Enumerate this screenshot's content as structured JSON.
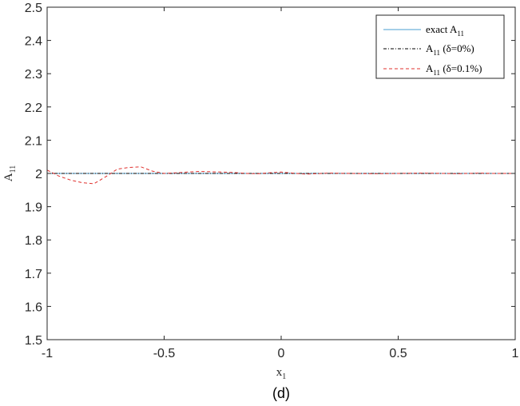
{
  "chart_data": {
    "type": "line",
    "title": "",
    "xlabel": "x",
    "xlabel_sub": "1",
    "ylabel": "A",
    "ylabel_sub": "11",
    "xlim": [
      -1,
      1
    ],
    "ylim": [
      1.5,
      2.5
    ],
    "xticks": [
      "-1",
      "-0.5",
      "0",
      "0.5",
      "1"
    ],
    "yticks": [
      "1.5",
      "1.6",
      "1.7",
      "1.8",
      "1.9",
      "2",
      "2.1",
      "2.2",
      "2.3",
      "2.4",
      "2.5"
    ],
    "grid": false,
    "legend_position": "top-right",
    "caption": "(d)",
    "series": [
      {
        "name": "exact A11",
        "label": {
          "prefix": "exact A",
          "sub": "11",
          "suffix": ""
        },
        "style": "solid",
        "color": "#4a9fd0",
        "x": [
          -1,
          1
        ],
        "y": [
          2.0,
          2.0
        ]
      },
      {
        "name": "A11 (δ=0%)",
        "label": {
          "prefix": "A",
          "sub": "11",
          "suffix": " (δ=0%)"
        },
        "style": "dashdot",
        "color": "#000000",
        "x": [
          -1,
          1
        ],
        "y": [
          2.0,
          2.0
        ]
      },
      {
        "name": "A11 (δ=0.1%)",
        "label": {
          "prefix": "A",
          "sub": "11",
          "suffix": " (δ=0.1%)"
        },
        "style": "dashed",
        "color": "#e0312e",
        "x": [
          -1,
          -0.95,
          -0.9,
          -0.85,
          -0.8,
          -0.75,
          -0.7,
          -0.65,
          -0.6,
          -0.55,
          -0.5,
          -0.45,
          -0.4,
          -0.35,
          -0.3,
          -0.25,
          -0.2,
          -0.15,
          -0.1,
          -0.05,
          0,
          0.05,
          0.1,
          0.15,
          0.2,
          0.3,
          0.4,
          0.5,
          0.6,
          0.7,
          0.75,
          0.8,
          0.85,
          0.9,
          1
        ],
        "y": [
          2.01,
          1.992,
          1.98,
          1.972,
          1.969,
          1.99,
          2.013,
          2.018,
          2.02,
          2.007,
          2.0,
          2.002,
          2.004,
          2.006,
          2.005,
          2.004,
          2.003,
          2.0,
          1.999,
          2.002,
          2.004,
          2.001,
          1.998,
          1.999,
          2.001,
          2.0,
          1.999,
          2.0,
          2.001,
          2.0,
          1.999,
          2.0,
          2.001,
          2.0,
          2.0
        ]
      }
    ]
  }
}
